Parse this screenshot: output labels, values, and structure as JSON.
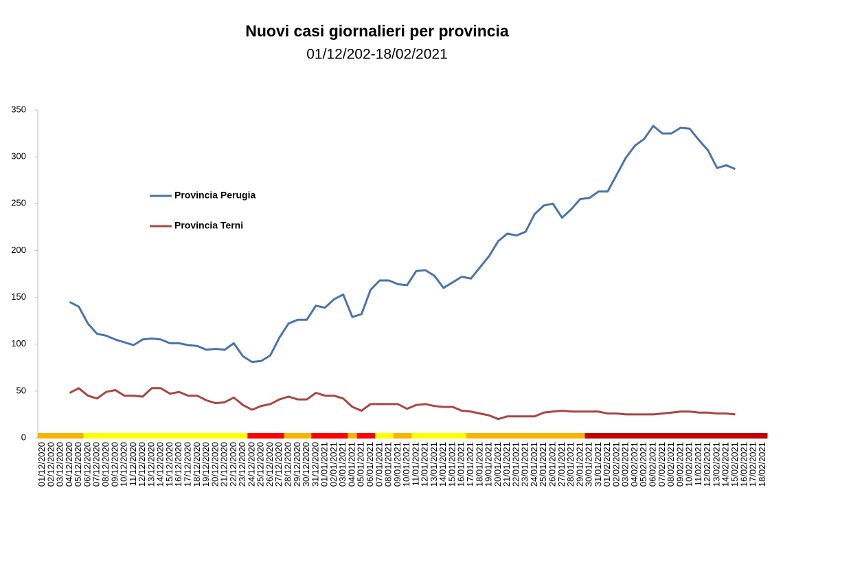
{
  "chart_data": {
    "type": "line",
    "title": "Nuovi casi giornalieri per provincia",
    "subtitle": "01/12/202-18/02/2021",
    "categories": [
      "01/12/2020",
      "02/12/2020",
      "03/12/2020",
      "04/12/2020",
      "05/12/2020",
      "06/12/2020",
      "07/12/2020",
      "08/12/2020",
      "09/12/2020",
      "10/12/2020",
      "11/12/2020",
      "12/12/2020",
      "13/12/2020",
      "14/12/2020",
      "15/12/2020",
      "16/12/2020",
      "17/12/2020",
      "18/12/2020",
      "19/12/2020",
      "20/12/2020",
      "21/12/2020",
      "22/12/2020",
      "23/12/2020",
      "24/12/2020",
      "25/12/2020",
      "26/12/2020",
      "27/12/2020",
      "28/12/2020",
      "29/12/2020",
      "30/12/2020",
      "31/12/2020",
      "01/01/2021",
      "02/01/2021",
      "03/01/2021",
      "04/01/2021",
      "05/01/2021",
      "06/01/2021",
      "07/01/2021",
      "08/01/2021",
      "09/01/2021",
      "10/01/2021",
      "11/01/2021",
      "12/01/2021",
      "13/01/2021",
      "14/01/2021",
      "15/01/2021",
      "16/01/2021",
      "17/01/2021",
      "18/01/2021",
      "19/01/2021",
      "20/01/2021",
      "21/01/2021",
      "22/01/2021",
      "23/01/2021",
      "24/01/2021",
      "25/01/2021",
      "26/01/2021",
      "27/01/2021",
      "28/01/2021",
      "29/01/2021",
      "30/01/2021",
      "31/01/2021",
      "01/02/2021",
      "02/02/2021",
      "03/02/2021",
      "04/02/2021",
      "05/02/2021",
      "06/02/2021",
      "07/02/2021",
      "08/02/2021",
      "09/02/2021",
      "10/02/2021",
      "11/02/2021",
      "12/02/2021",
      "13/02/2021",
      "14/02/2021",
      "15/02/2021",
      "16/02/2021",
      "17/02/2021",
      "18/02/2021"
    ],
    "series": [
      {
        "name": "Provincia Perugia",
        "color": "#4a74a8",
        "values": [
          null,
          null,
          null,
          145,
          140,
          122,
          111,
          109,
          105,
          102,
          99,
          105,
          106,
          105,
          101,
          101,
          99,
          98,
          94,
          95,
          94,
          101,
          87,
          81,
          82,
          88,
          107,
          122,
          126,
          126,
          141,
          139,
          148,
          153,
          129,
          132,
          158,
          168,
          168,
          164,
          163,
          178,
          179,
          173,
          160,
          166,
          172,
          170,
          182,
          194,
          210,
          218,
          216,
          220,
          239,
          248,
          250,
          235,
          244,
          255,
          256,
          263,
          263,
          281,
          299,
          312,
          319,
          333,
          325,
          325,
          331,
          330,
          318,
          307,
          288,
          291,
          287,
          null,
          null,
          null
        ]
      },
      {
        "name": "Provincia Terni",
        "color": "#a84644",
        "values": [
          null,
          null,
          null,
          48,
          53,
          45,
          42,
          49,
          51,
          45,
          45,
          44,
          53,
          53,
          47,
          49,
          45,
          45,
          40,
          37,
          38,
          43,
          35,
          30,
          34,
          36,
          41,
          44,
          41,
          41,
          48,
          45,
          45,
          42,
          33,
          29,
          36,
          36,
          36,
          36,
          31,
          35,
          36,
          34,
          33,
          33,
          29,
          28,
          26,
          24,
          20,
          23,
          23,
          23,
          23,
          27,
          28,
          29,
          28,
          28,
          28,
          28,
          26,
          26,
          25,
          25,
          25,
          25,
          26,
          27,
          28,
          28,
          27,
          27,
          26,
          26,
          25,
          null,
          null,
          null
        ]
      }
    ],
    "band_colors": [
      "#f5b400",
      "#f5b400",
      "#f5b400",
      "#f5b400",
      "#f5b400",
      "#ffff00",
      "#ffff00",
      "#ffff00",
      "#ffff00",
      "#ffff00",
      "#ffff00",
      "#ffff00",
      "#ffff00",
      "#ffff00",
      "#ffff00",
      "#ffff00",
      "#ffff00",
      "#ffff00",
      "#ffff00",
      "#ffff00",
      "#ffff00",
      "#ffff00",
      "#ffff00",
      "#ff0000",
      "#ff0000",
      "#ff0000",
      "#ff0000",
      "#f5b400",
      "#f5b400",
      "#f5b400",
      "#ff0000",
      "#ff0000",
      "#ff0000",
      "#ff0000",
      "#f5b400",
      "#ff0000",
      "#ff0000",
      "#ffff00",
      "#ffff00",
      "#f5b400",
      "#f5b400",
      "#ffff00",
      "#ffff00",
      "#ffff00",
      "#ffff00",
      "#ffff00",
      "#ffff00",
      "#f5b400",
      "#f5b400",
      "#f5b400",
      "#f5b400",
      "#f5b400",
      "#f5b400",
      "#f5b400",
      "#f5b400",
      "#f5b400",
      "#f5b400",
      "#f5b400",
      "#f5b400",
      "#f5b400",
      "#c00000",
      "#c00000",
      "#c00000",
      "#c00000",
      "#c00000",
      "#c00000",
      "#c00000",
      "#c00000",
      "#c00000",
      "#c00000",
      "#c00000",
      "#c00000",
      "#c00000",
      "#c00000",
      "#c00000",
      "#c00000",
      "#c00000",
      "#c00000",
      "#c00000",
      "#c00000"
    ],
    "ylim": [
      0,
      350
    ],
    "yticks": [
      0,
      50,
      100,
      150,
      200,
      250,
      300,
      350
    ],
    "grid": false
  }
}
